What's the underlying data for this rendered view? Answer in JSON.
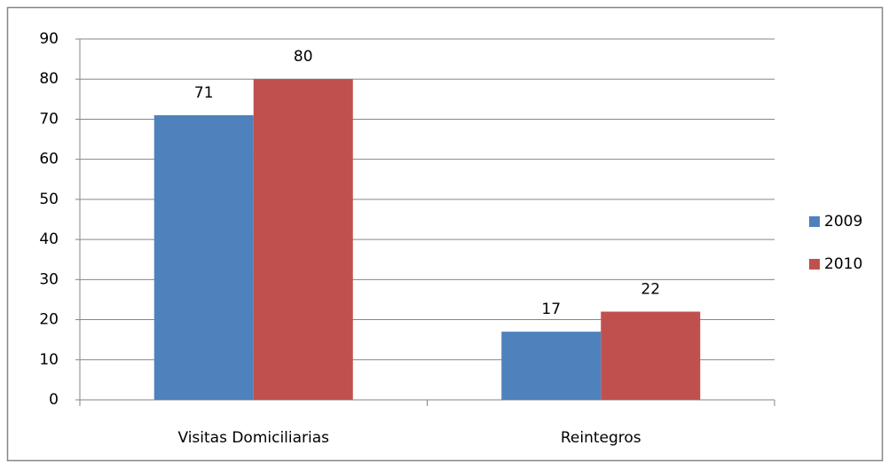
{
  "chart_data": {
    "type": "bar",
    "categories": [
      "Visitas Domiciliarias",
      "Reintegros"
    ],
    "series": [
      {
        "name": "2009",
        "color": "#4f81bd",
        "values": [
          71,
          17
        ]
      },
      {
        "name": "2010",
        "color": "#c0504d",
        "values": [
          80,
          22
        ]
      }
    ],
    "ylim": [
      0,
      90
    ],
    "yticks": [
      0,
      10,
      20,
      30,
      40,
      50,
      60,
      70,
      80,
      90
    ],
    "grid": true,
    "legend": "right",
    "data_labels": true
  }
}
